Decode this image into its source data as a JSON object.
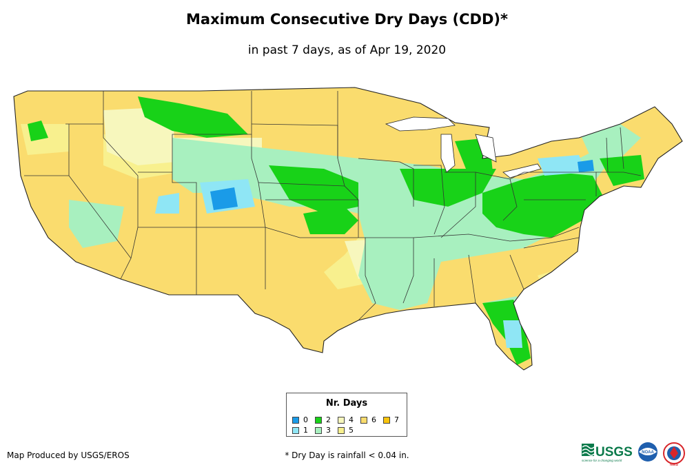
{
  "title": "Maximum Consecutive Dry Days (CDD)*",
  "subtitle": "in past 7 days, as of Apr 19, 2020",
  "legend": {
    "title": "Nr. Days",
    "items": [
      {
        "label": "0",
        "color": "#1a9be8"
      },
      {
        "label": "1",
        "color": "#8fe6f5"
      },
      {
        "label": "2",
        "color": "#18d218"
      },
      {
        "label": "3",
        "color": "#a8f0bf"
      },
      {
        "label": "4",
        "color": "#f7f7bd"
      },
      {
        "label": "5",
        "color": "#f8f08e"
      },
      {
        "label": "6",
        "color": "#fadc6e"
      },
      {
        "label": "7",
        "color": "#f9c40c"
      }
    ]
  },
  "credit": "Map Produced by USGS/EROS",
  "footnote": "* Dry Day is rainfall < 0.04 in.",
  "logos": {
    "usgs_text": "USGS",
    "usgs_tagline": "science for a changing world",
    "noaa_text": "NOAA",
    "nws_text": "NWS"
  },
  "colors": {
    "d0": "#1a9be8",
    "d1": "#8fe6f5",
    "d2": "#18d218",
    "d3": "#a8f0bf",
    "d4": "#f7f7bd",
    "d5": "#f8f08e",
    "d6": "#fadc6e",
    "d7": "#f9c40c",
    "usgs_green": "#0b7a4b",
    "noaa_blue": "#1f5fae",
    "nws_red": "#d8262b"
  }
}
